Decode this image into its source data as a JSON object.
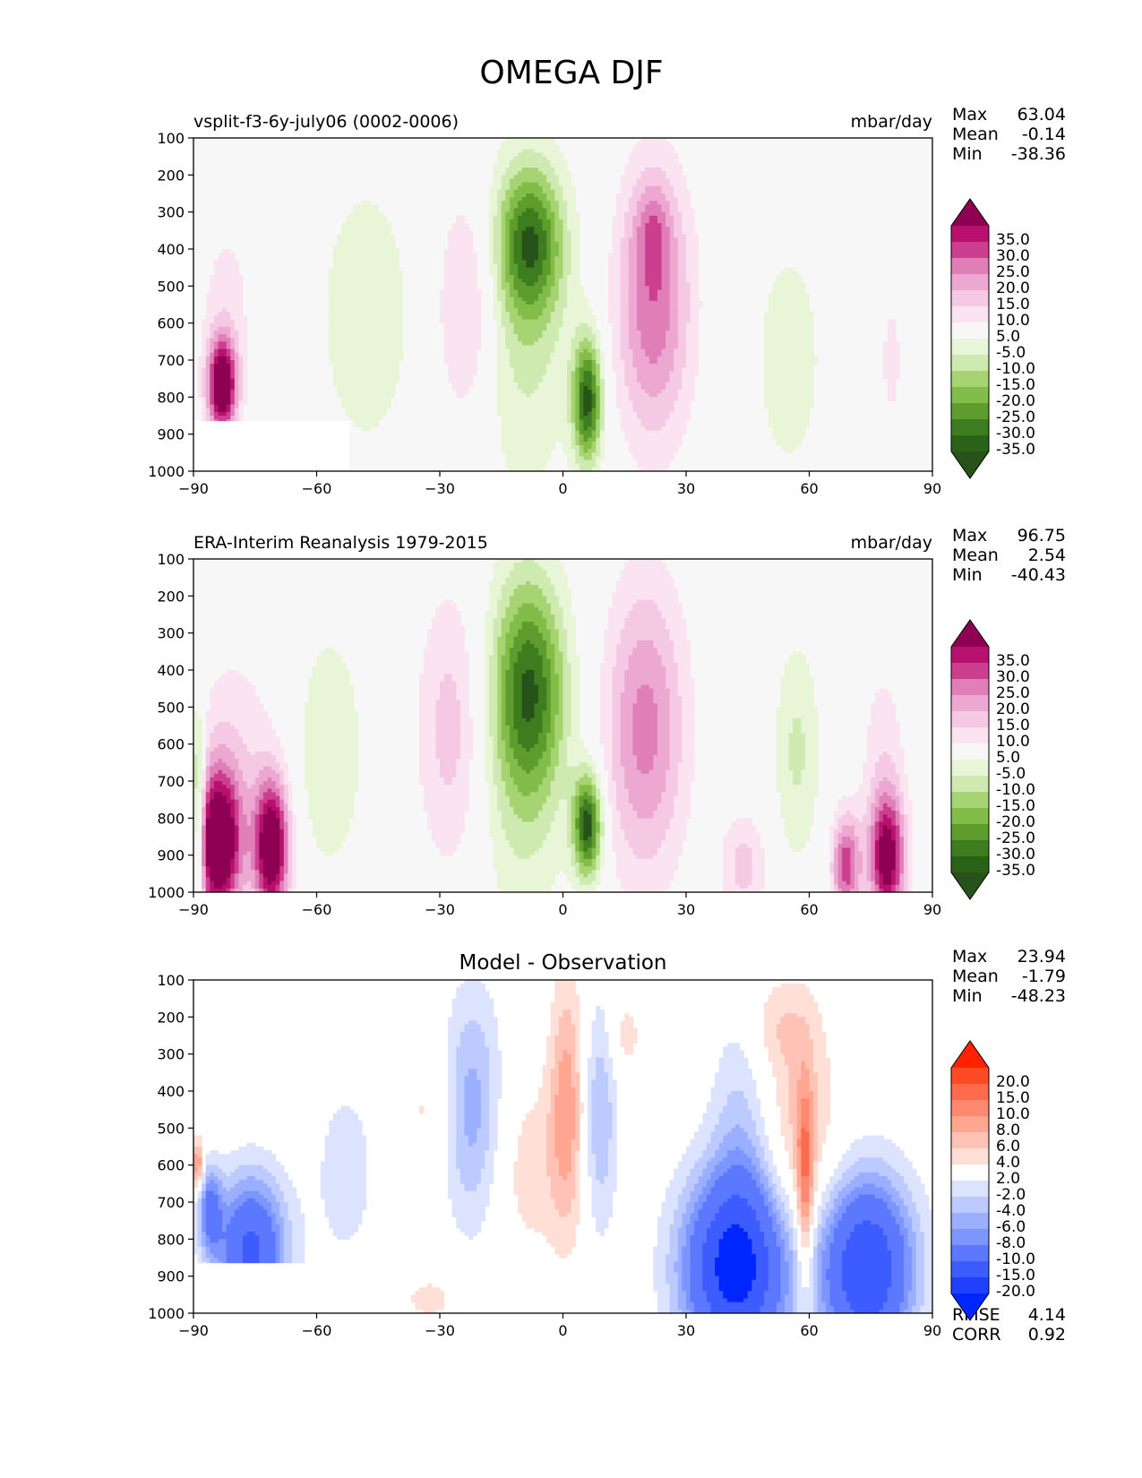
{
  "figure": {
    "title": "OMEGA DJF"
  },
  "chart_data": [
    {
      "type": "heatmap",
      "title_left": "vsplit-f3-6y-july06 (0002-0006)",
      "title_right": "mbar/day",
      "title_center": "",
      "xlabel": "",
      "ylabel": "",
      "xlim": [
        -90,
        90
      ],
      "ylim": [
        1000,
        100
      ],
      "x_ticks": [
        -90,
        -60,
        -30,
        0,
        30,
        60,
        90
      ],
      "x_tick_labels": [
        "−90",
        "−60",
        "−30",
        "0",
        "30",
        "60",
        "90"
      ],
      "y_ticks": [
        100,
        200,
        300,
        400,
        500,
        600,
        700,
        800,
        900,
        1000
      ],
      "y_tick_labels": [
        "100",
        "200",
        "300",
        "400",
        "500",
        "600",
        "700",
        "800",
        "900",
        "1000"
      ],
      "stats": [
        [
          "Max",
          "63.04"
        ],
        [
          "Mean",
          "-0.14"
        ],
        [
          "Min",
          "-38.36"
        ]
      ],
      "footer_stats": [],
      "colorbar": {
        "labels": [
          "35.0",
          "30.0",
          "25.0",
          "20.0",
          "15.0",
          "10.0",
          "5.0",
          "-5.0",
          "-10.0",
          "-15.0",
          "-20.0",
          "-25.0",
          "-30.0",
          "-35.0"
        ],
        "top_color": "#8e0152",
        "colors": [
          "#b8106f",
          "#cc3f8f",
          "#e07eb8",
          "#eda8d2",
          "#f5c8e4",
          "#fbe4f1",
          "#f7f7f7",
          "#e8f5d6",
          "#cfeab1",
          "#a7d472",
          "#82bd4a",
          "#5d9c2d",
          "#3e7d1f",
          "#2a6218"
        ],
        "bottom_color": "#27521a"
      },
      "features": [
        {
          "lon": -83,
          "p": 770,
          "slon": 2.5,
          "sp": 90,
          "v": 45
        },
        {
          "lon": -82,
          "p": 550,
          "slon": 5,
          "sp": 180,
          "v": 7
        },
        {
          "lon": -48,
          "p": 580,
          "slon": 8,
          "sp": 260,
          "v": -10
        },
        {
          "lon": -23,
          "p": 560,
          "slon": 5.5,
          "sp": 230,
          "v": 14
        },
        {
          "lon": -8,
          "p": 380,
          "slon": 5.5,
          "sp": 140,
          "v": -28
        },
        {
          "lon": -10,
          "p": 600,
          "slon": 9,
          "sp": 330,
          "v": -12
        },
        {
          "lon": 6,
          "p": 810,
          "slon": 2.5,
          "sp": 120,
          "v": -36
        },
        {
          "lon": 22,
          "p": 550,
          "slon": 6.5,
          "sp": 260,
          "v": 24
        },
        {
          "lon": 22,
          "p": 350,
          "slon": 3,
          "sp": 90,
          "v": 10
        },
        {
          "lon": 55,
          "p": 700,
          "slon": 6,
          "sp": 230,
          "v": -9
        },
        {
          "lon": 80,
          "p": 700,
          "slon": 2,
          "sp": 140,
          "v": 7
        }
      ],
      "mask": [
        {
          "lon0": -90,
          "lon1": -52,
          "p0": 865,
          "p1": 1000
        }
      ]
    },
    {
      "type": "heatmap",
      "title_left": "ERA-Interim Reanalysis 1979-2015",
      "title_right": "mbar/day",
      "title_center": "",
      "xlabel": "",
      "ylabel": "",
      "xlim": [
        -90,
        90
      ],
      "ylim": [
        1000,
        100
      ],
      "x_ticks": [
        -90,
        -60,
        -30,
        0,
        30,
        60,
        90
      ],
      "x_tick_labels": [
        "−90",
        "−60",
        "−30",
        "0",
        "30",
        "60",
        "90"
      ],
      "y_ticks": [
        100,
        200,
        300,
        400,
        500,
        600,
        700,
        800,
        900,
        1000
      ],
      "y_tick_labels": [
        "100",
        "200",
        "300",
        "400",
        "500",
        "600",
        "700",
        "800",
        "900",
        "1000"
      ],
      "stats": [
        [
          "Max",
          "96.75"
        ],
        [
          "Mean",
          "2.54"
        ],
        [
          "Min",
          "-40.43"
        ]
      ],
      "footer_stats": [],
      "colorbar": {
        "labels": [
          "35.0",
          "30.0",
          "25.0",
          "20.0",
          "15.0",
          "10.0",
          "5.0",
          "-5.0",
          "-10.0",
          "-15.0",
          "-20.0",
          "-25.0",
          "-30.0",
          "-35.0"
        ],
        "top_color": "#8e0152",
        "colors": [
          "#b8106f",
          "#cc3f8f",
          "#e07eb8",
          "#eda8d2",
          "#f5c8e4",
          "#fbe4f1",
          "#f7f7f7",
          "#e8f5d6",
          "#cfeab1",
          "#a7d472",
          "#82bd4a",
          "#5d9c2d",
          "#3e7d1f",
          "#2a6218"
        ],
        "bottom_color": "#27521a"
      },
      "features": [
        {
          "lon": -84,
          "p": 870,
          "slon": 4,
          "sp": 140,
          "v": 48
        },
        {
          "lon": -71,
          "p": 880,
          "slon": 3,
          "sp": 130,
          "v": 45
        },
        {
          "lon": -80,
          "p": 620,
          "slon": 8,
          "sp": 220,
          "v": 8
        },
        {
          "lon": -89,
          "p": 800,
          "slon": 1.3,
          "sp": 200,
          "v": -28
        },
        {
          "lon": -57,
          "p": 620,
          "slon": 6,
          "sp": 240,
          "v": -10
        },
        {
          "lon": -27,
          "p": 560,
          "slon": 6,
          "sp": 270,
          "v": 13
        },
        {
          "lon": -8,
          "p": 450,
          "slon": 6,
          "sp": 200,
          "v": -26
        },
        {
          "lon": -10,
          "p": 600,
          "slon": 8,
          "sp": 360,
          "v": -12
        },
        {
          "lon": 6,
          "p": 820,
          "slon": 2.5,
          "sp": 100,
          "v": -38
        },
        {
          "lon": 20,
          "p": 560,
          "slon": 7,
          "sp": 280,
          "v": 22
        },
        {
          "lon": 57,
          "p": 620,
          "slon": 4,
          "sp": 220,
          "v": -11
        },
        {
          "lon": 69,
          "p": 930,
          "slon": 2.5,
          "sp": 100,
          "v": 28
        },
        {
          "lon": 79,
          "p": 910,
          "slon": 3,
          "sp": 120,
          "v": 38
        },
        {
          "lon": 78,
          "p": 660,
          "slon": 4,
          "sp": 220,
          "v": 8
        },
        {
          "lon": 44,
          "p": 930,
          "slon": 4,
          "sp": 100,
          "v": 12
        }
      ],
      "mask": []
    },
    {
      "type": "heatmap",
      "title_left": "",
      "title_right": "",
      "title_center": "Model - Observation",
      "xlabel": "",
      "ylabel": "",
      "xlim": [
        -90,
        90
      ],
      "ylim": [
        1000,
        100
      ],
      "x_ticks": [
        -90,
        -60,
        -30,
        0,
        30,
        60,
        90
      ],
      "x_tick_labels": [
        "−90",
        "−60",
        "−30",
        "0",
        "30",
        "60",
        "90"
      ],
      "y_ticks": [
        100,
        200,
        300,
        400,
        500,
        600,
        700,
        800,
        900,
        1000
      ],
      "y_tick_labels": [
        "100",
        "200",
        "300",
        "400",
        "500",
        "600",
        "700",
        "800",
        "900",
        "1000"
      ],
      "stats": [
        [
          "Max",
          "23.94"
        ],
        [
          "Mean",
          "-1.79"
        ],
        [
          "Min",
          "-48.23"
        ]
      ],
      "footer_stats": [
        [
          "RMSE",
          "4.14"
        ],
        [
          "CORR",
          "0.92"
        ]
      ],
      "colorbar": {
        "labels": [
          "20.0",
          "15.0",
          "10.0",
          "8.0",
          "6.0",
          "4.0",
          "2.0",
          "-2.0",
          "-4.0",
          "-6.0",
          "-8.0",
          "-10.0",
          "-15.0",
          "-20.0"
        ],
        "top_color": "#ff2200",
        "colors": [
          "#ff4a26",
          "#ff6a4d",
          "#ff8870",
          "#ffa691",
          "#ffc2b4",
          "#ffdfd6",
          "#ffffff",
          "#dce3ff",
          "#bccaff",
          "#9aafff",
          "#7d95ff",
          "#5c78ff",
          "#3d5cff",
          "#1f40ff"
        ],
        "bottom_color": "#0026ff"
      },
      "features": [
        {
          "lon": -22,
          "p": 450,
          "slon": 5,
          "sp": 230,
          "v": -7
        },
        {
          "lon": 1,
          "p": 430,
          "slon": 3,
          "sp": 240,
          "v": 7
        },
        {
          "lon": -8,
          "p": 610,
          "slon": 7,
          "sp": 180,
          "v": 3
        },
        {
          "lon": 9,
          "p": 470,
          "slon": 3,
          "sp": 220,
          "v": -6
        },
        {
          "lon": -33,
          "p": 450,
          "slon": 4,
          "sp": 120,
          "v": 2.5
        },
        {
          "lon": -53,
          "p": 620,
          "slon": 6,
          "sp": 200,
          "v": -3
        },
        {
          "lon": -76,
          "p": 830,
          "slon": 6,
          "sp": 140,
          "v": -16
        },
        {
          "lon": -86,
          "p": 720,
          "slon": 2,
          "sp": 80,
          "v": -10
        },
        {
          "lon": -89,
          "p": 600,
          "slon": 1,
          "sp": 50,
          "v": 9
        },
        {
          "lon": 42,
          "p": 880,
          "slon": 9,
          "sp": 180,
          "v": -22
        },
        {
          "lon": 43,
          "p": 500,
          "slon": 5,
          "sp": 260,
          "v": -4
        },
        {
          "lon": 58,
          "p": 520,
          "slon": 6,
          "sp": 230,
          "v": 5
        },
        {
          "lon": 59,
          "p": 680,
          "slon": 1.5,
          "sp": 200,
          "v": 9
        },
        {
          "lon": 74,
          "p": 880,
          "slon": 8,
          "sp": 170,
          "v": -20
        },
        {
          "lon": 15,
          "p": 250,
          "slon": 3,
          "sp": 80,
          "v": 3
        },
        {
          "lon": 52,
          "p": 220,
          "slon": 6,
          "sp": 90,
          "v": 3
        },
        {
          "lon": -32,
          "p": 960,
          "slon": 7,
          "sp": 60,
          "v": 2.5
        }
      ],
      "mask": [
        {
          "lon0": -90,
          "lon1": -53,
          "p0": 865,
          "p1": 1000
        }
      ]
    }
  ]
}
